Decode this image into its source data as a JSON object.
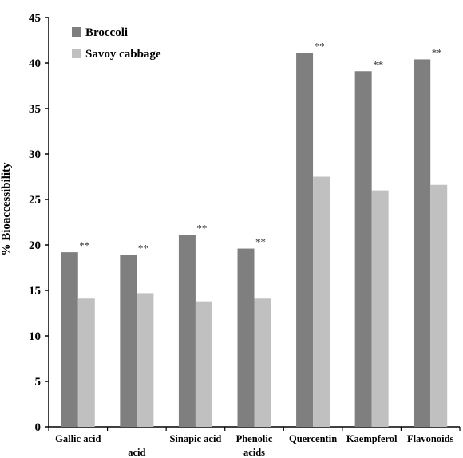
{
  "chart_data": {
    "type": "bar",
    "title": "",
    "xlabel": "",
    "ylabel": "% Bioaccessibility",
    "ylim": [
      0,
      45
    ],
    "yticks": [
      0,
      5,
      10,
      15,
      20,
      25,
      30,
      35,
      40,
      45
    ],
    "grid": false,
    "legend_position": "top-left",
    "categories": [
      [
        "Gallic acid"
      ],
      [
        "",
        "acid"
      ],
      [
        "Sinapic acid"
      ],
      [
        "Phenolic",
        "acids"
      ],
      [
        "Quercentin"
      ],
      [
        "Kaempferol"
      ],
      [
        "Flavonoids"
      ]
    ],
    "series": [
      {
        "name": "Broccoli",
        "color": "#7f7f7f",
        "values": [
          19.2,
          18.9,
          21.1,
          19.6,
          41.1,
          39.1,
          40.4
        ]
      },
      {
        "name": "Savoy cabbage",
        "color": "#c0c0c0",
        "values": [
          14.1,
          14.7,
          13.8,
          14.1,
          27.5,
          26.0,
          26.6
        ]
      }
    ],
    "annotations": [
      "**",
      "**",
      "**",
      "**",
      "**",
      "**",
      "**"
    ]
  }
}
